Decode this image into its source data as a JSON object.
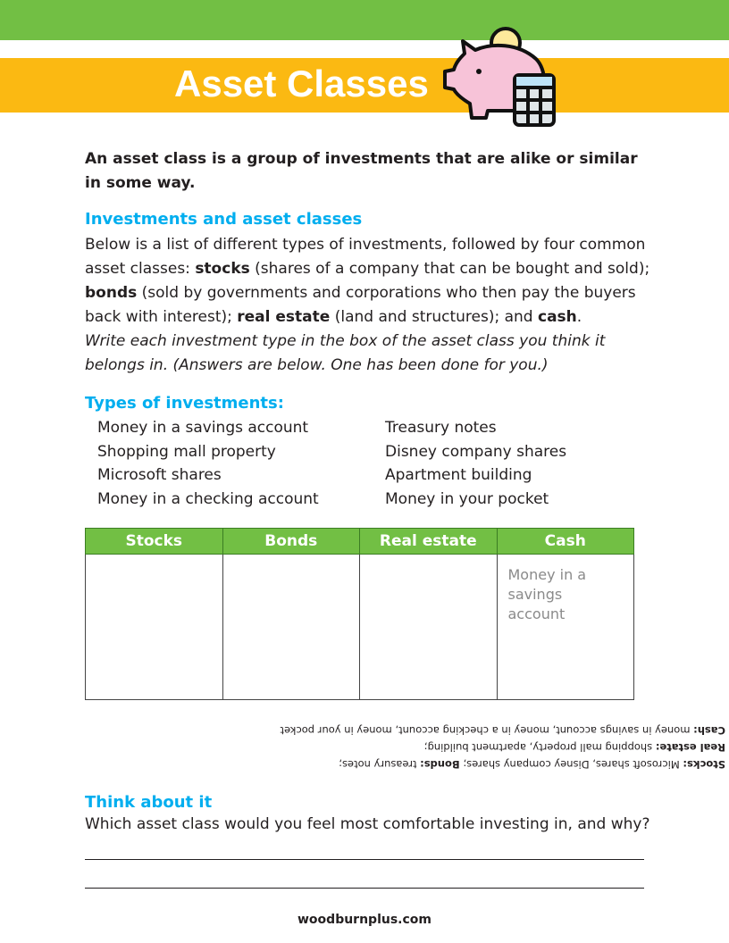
{
  "colors": {
    "green": "#72bf44",
    "orange": "#fbb912",
    "heading": "#00aeef"
  },
  "header": {
    "title": "Asset Classes",
    "icon": "piggy-bank-calculator-icon"
  },
  "intro": "An asset class is a group of investments that are alike or similar in some way.",
  "section1": {
    "heading": "Investments and asset classes",
    "p1": "Below is a list of different types of investments, followed by four common asset classes: ",
    "stocks": "stocks",
    "stocks_desc": " (shares of a company that can be bought and sold); ",
    "bonds": "bonds",
    "bonds_desc": " (sold by governments and corporations who then pay the buyers back with interest); ",
    "real_estate": "real estate",
    "real_estate_desc": " (land and structures); and ",
    "cash": "cash",
    "end": ".",
    "instructions": "Write each investment type in the box of the asset class you think it belongs in. (Answers are below. One has been done for you.)"
  },
  "types": {
    "heading": "Types of investments:",
    "left": [
      "Money in a savings account",
      "Shopping mall property",
      "Microsoft shares",
      "Money in a checking account"
    ],
    "right": [
      "Treasury notes",
      "Disney company shares",
      "Apartment building",
      "Money in your pocket"
    ]
  },
  "table": {
    "headers": [
      "Stocks",
      "Bonds",
      "Real estate",
      "Cash"
    ],
    "cells": [
      "",
      "",
      "",
      "Money in a savings account"
    ]
  },
  "answers": [
    {
      "label": "Stocks:",
      "text": " Microsoft shares, Disney company shares; ",
      "label2": "Bonds:",
      "text2": " treasury notes;"
    },
    {
      "label": "Real estate:",
      "text": " shopping mall property, apartment building;"
    },
    {
      "label": "Cash:",
      "text": " money in savings account, money in a checking account, money in your pocket"
    }
  ],
  "think": {
    "heading": "Think about it",
    "question": "Which asset class would you feel most comfortable investing in, and why?"
  },
  "footer": "woodburnplus.com"
}
